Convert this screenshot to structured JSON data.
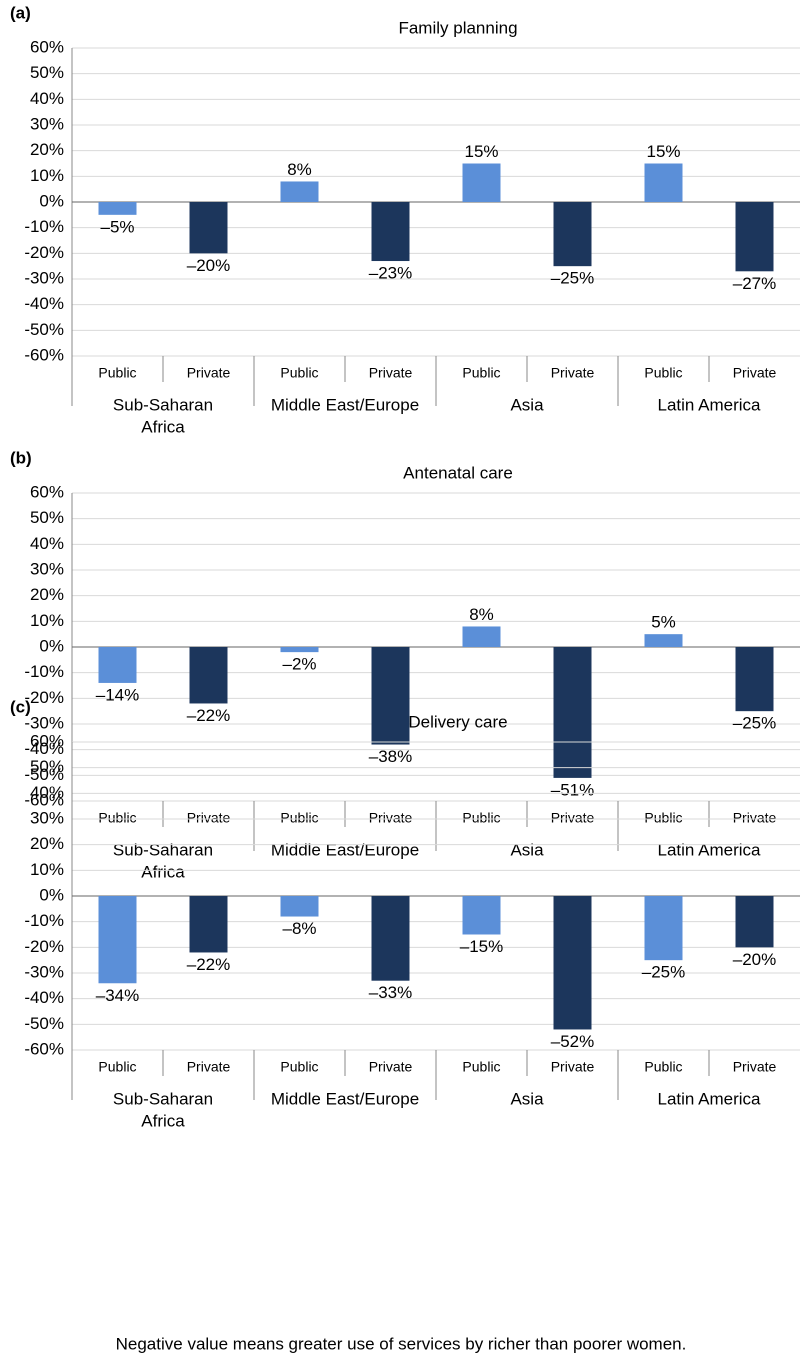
{
  "chart_data": [
    {
      "type": "bar",
      "panel": "(a)",
      "title": "Family planning",
      "categories": [
        "Public",
        "Private",
        "Public",
        "Private",
        "Public",
        "Private",
        "Public",
        "Private"
      ],
      "groups": [
        [
          "Sub-Saharan",
          "Africa"
        ],
        [
          "Middle East/Europe"
        ],
        [
          "Asia"
        ],
        [
          "Latin America"
        ]
      ],
      "values": [
        -5,
        -20,
        8,
        -23,
        15,
        -25,
        15,
        -27
      ],
      "value_labels": [
        "–5%",
        "–20%",
        "8%",
        "–23%",
        "15%",
        "–25%",
        "15%",
        "–27%"
      ],
      "colors": [
        "#5b8fd8",
        "#1c365c",
        "#5b8fd8",
        "#1c365c",
        "#5b8fd8",
        "#1c365c",
        "#5b8fd8",
        "#1c365c"
      ],
      "ylim": [
        -60,
        60
      ],
      "yticks": [
        {
          "value": -60,
          "label": "-60%"
        },
        {
          "value": -50,
          "label": "-50%"
        },
        {
          "value": -40,
          "label": "-40%"
        },
        {
          "value": -30,
          "label": "-30%"
        },
        {
          "value": -20,
          "label": "-20%"
        },
        {
          "value": -10,
          "label": "-10%"
        },
        {
          "value": 0,
          "label": "0%"
        },
        {
          "value": 10,
          "label": "10%"
        },
        {
          "value": 20,
          "label": "20%"
        },
        {
          "value": 30,
          "label": "30%"
        },
        {
          "value": 40,
          "label": "40%"
        },
        {
          "value": 50,
          "label": "50%"
        },
        {
          "value": 60,
          "label": "60%"
        }
      ],
      "grid": true
    },
    {
      "type": "bar",
      "panel": "(b)",
      "title": "Antenatal care",
      "categories": [
        "Public",
        "Private",
        "Public",
        "Private",
        "Public",
        "Private",
        "Public",
        "Private"
      ],
      "groups": [
        [
          "Sub-Saharan",
          "Africa"
        ],
        [
          "Middle East/Europe"
        ],
        [
          "Asia"
        ],
        [
          "Latin America"
        ]
      ],
      "values": [
        -14,
        -22,
        -2,
        -38,
        8,
        -51,
        5,
        -25
      ],
      "value_labels": [
        "–14%",
        "–22%",
        "–2%",
        "–38%",
        "8%",
        "–51%",
        "5%",
        "–25%"
      ],
      "colors": [
        "#5b8fd8",
        "#1c365c",
        "#5b8fd8",
        "#1c365c",
        "#5b8fd8",
        "#1c365c",
        "#5b8fd8",
        "#1c365c"
      ],
      "ylim": [
        -60,
        60
      ],
      "yticks": [
        {
          "value": -60,
          "label": "-60%"
        },
        {
          "value": -50,
          "label": "-50%"
        },
        {
          "value": -40,
          "label": "-40%"
        },
        {
          "value": -30,
          "label": "-30%"
        },
        {
          "value": -20,
          "label": "-20%"
        },
        {
          "value": -10,
          "label": "-10%"
        },
        {
          "value": 0,
          "label": "0%"
        },
        {
          "value": 10,
          "label": "10%"
        },
        {
          "value": 20,
          "label": "20%"
        },
        {
          "value": 30,
          "label": "30%"
        },
        {
          "value": 40,
          "label": "40%"
        },
        {
          "value": 50,
          "label": "50%"
        },
        {
          "value": 60,
          "label": "60%"
        }
      ],
      "grid": true
    },
    {
      "type": "bar",
      "panel": "(c)",
      "title": "Delivery care",
      "categories": [
        "Public",
        "Private",
        "Public",
        "Private",
        "Public",
        "Private",
        "Public",
        "Private"
      ],
      "groups": [
        [
          "Sub-Saharan",
          "Africa"
        ],
        [
          "Middle East/Europe"
        ],
        [
          "Asia"
        ],
        [
          "Latin America"
        ]
      ],
      "values": [
        -34,
        -22,
        -8,
        -33,
        -15,
        -52,
        -25,
        -20
      ],
      "value_labels": [
        "–34%",
        "–22%",
        "–8%",
        "–33%",
        "–15%",
        "–52%",
        "–25%",
        "–20%"
      ],
      "colors": [
        "#5b8fd8",
        "#1c365c",
        "#5b8fd8",
        "#1c365c",
        "#5b8fd8",
        "#1c365c",
        "#5b8fd8",
        "#1c365c"
      ],
      "ylim": [
        -60,
        60
      ],
      "yticks": [
        {
          "value": -60,
          "label": "-60%"
        },
        {
          "value": -50,
          "label": "-50%"
        },
        {
          "value": -40,
          "label": "-40%"
        },
        {
          "value": -30,
          "label": "-30%"
        },
        {
          "value": -20,
          "label": "-20%"
        },
        {
          "value": -10,
          "label": "-10%"
        },
        {
          "value": 0,
          "label": "0%"
        },
        {
          "value": 10,
          "label": "10%"
        },
        {
          "value": 20,
          "label": "20%"
        },
        {
          "value": 30,
          "label": "30%"
        },
        {
          "value": 40,
          "label": "40%"
        },
        {
          "value": 50,
          "label": "50%"
        },
        {
          "value": 60,
          "label": "60%"
        }
      ],
      "grid": true
    }
  ],
  "note": "Negative value means greater use of services by richer than poorer women."
}
